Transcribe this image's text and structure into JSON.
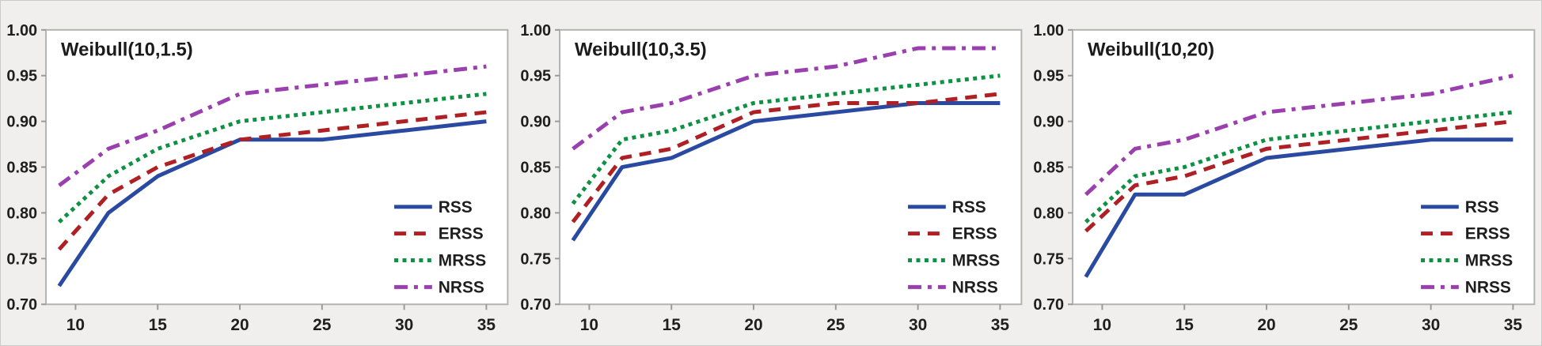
{
  "figure": {
    "name": "weibull-efficiency-comparison-figure",
    "background_color": "#f0efed",
    "plot_background_color": "#ffffff",
    "frame_color": "#b3b3b1",
    "tick_color": "#9a9a98",
    "text_color": "#1b1b1b"
  },
  "chart_data": [
    {
      "type": "line",
      "title": "Weibull(10,1.5)",
      "x": [
        9,
        12,
        15,
        20,
        25,
        30,
        35
      ],
      "x_tick_labels": [
        "10",
        "15",
        "20",
        "25",
        "30",
        "35"
      ],
      "x_ticks": [
        10,
        15,
        20,
        25,
        30,
        35
      ],
      "y_tick_labels": [
        "0.70",
        "0.75",
        "0.80",
        "0.85",
        "0.90",
        "0.95",
        "1.00"
      ],
      "y_ticks": [
        0.7,
        0.75,
        0.8,
        0.85,
        0.9,
        0.95,
        1.0
      ],
      "xlim": [
        8.2,
        36.3
      ],
      "ylim": [
        0.7,
        1.0
      ],
      "grid": false,
      "legend_position": "bottom-right",
      "series": [
        {
          "name": "RSS",
          "color": "#2a4aa1",
          "dash": "solid",
          "values": [
            0.72,
            0.8,
            0.84,
            0.88,
            0.88,
            0.89,
            0.9
          ]
        },
        {
          "name": "ERSS",
          "color": "#ae2024",
          "dash": "dashed",
          "values": [
            0.76,
            0.82,
            0.85,
            0.88,
            0.89,
            0.9,
            0.91
          ]
        },
        {
          "name": "MRSS",
          "color": "#0f9144",
          "dash": "dotted",
          "values": [
            0.79,
            0.84,
            0.87,
            0.9,
            0.91,
            0.92,
            0.93
          ]
        },
        {
          "name": "NRSS",
          "color": "#9a3fae",
          "dash": "dashdot",
          "values": [
            0.83,
            0.87,
            0.89,
            0.93,
            0.94,
            0.95,
            0.96
          ]
        }
      ]
    },
    {
      "type": "line",
      "title": "Weibull(10,3.5)",
      "x": [
        9,
        12,
        15,
        20,
        25,
        30,
        35
      ],
      "x_tick_labels": [
        "10",
        "15",
        "20",
        "25",
        "30",
        "35"
      ],
      "x_ticks": [
        10,
        15,
        20,
        25,
        30,
        35
      ],
      "y_tick_labels": [
        "0.70",
        "0.75",
        "0.80",
        "0.85",
        "0.90",
        "0.95",
        "1.00"
      ],
      "y_ticks": [
        0.7,
        0.75,
        0.8,
        0.85,
        0.9,
        0.95,
        1.0
      ],
      "xlim": [
        8.2,
        36.3
      ],
      "ylim": [
        0.7,
        1.0
      ],
      "grid": false,
      "legend_position": "bottom-right",
      "series": [
        {
          "name": "RSS",
          "color": "#2a4aa1",
          "dash": "solid",
          "values": [
            0.77,
            0.85,
            0.86,
            0.9,
            0.91,
            0.92,
            0.92
          ]
        },
        {
          "name": "ERSS",
          "color": "#ae2024",
          "dash": "dashed",
          "values": [
            0.79,
            0.86,
            0.87,
            0.91,
            0.92,
            0.92,
            0.93
          ]
        },
        {
          "name": "MRSS",
          "color": "#0f9144",
          "dash": "dotted",
          "values": [
            0.81,
            0.88,
            0.89,
            0.92,
            0.93,
            0.94,
            0.95
          ]
        },
        {
          "name": "NRSS",
          "color": "#9a3fae",
          "dash": "dashdot",
          "values": [
            0.87,
            0.91,
            0.92,
            0.95,
            0.96,
            0.98,
            0.98
          ]
        }
      ]
    },
    {
      "type": "line",
      "title": "Weibull(10,20)",
      "x": [
        9,
        12,
        15,
        20,
        25,
        30,
        35
      ],
      "x_tick_labels": [
        "10",
        "15",
        "20",
        "25",
        "30",
        "35"
      ],
      "x_ticks": [
        10,
        15,
        20,
        25,
        30,
        35
      ],
      "y_tick_labels": [
        "0.70",
        "0.75",
        "0.80",
        "0.85",
        "0.90",
        "0.95",
        "1.00"
      ],
      "y_ticks": [
        0.7,
        0.75,
        0.8,
        0.85,
        0.9,
        0.95,
        1.0
      ],
      "xlim": [
        8.2,
        36.3
      ],
      "ylim": [
        0.7,
        1.0
      ],
      "grid": false,
      "legend_position": "bottom-right",
      "series": [
        {
          "name": "RSS",
          "color": "#2a4aa1",
          "dash": "solid",
          "values": [
            0.73,
            0.82,
            0.82,
            0.86,
            0.87,
            0.88,
            0.88
          ]
        },
        {
          "name": "ERSS",
          "color": "#ae2024",
          "dash": "dashed",
          "values": [
            0.78,
            0.83,
            0.84,
            0.87,
            0.88,
            0.89,
            0.9
          ]
        },
        {
          "name": "MRSS",
          "color": "#0f9144",
          "dash": "dotted",
          "values": [
            0.79,
            0.84,
            0.85,
            0.88,
            0.89,
            0.9,
            0.91
          ]
        },
        {
          "name": "NRSS",
          "color": "#9a3fae",
          "dash": "dashdot",
          "values": [
            0.82,
            0.87,
            0.88,
            0.91,
            0.92,
            0.93,
            0.95
          ]
        }
      ]
    }
  ]
}
